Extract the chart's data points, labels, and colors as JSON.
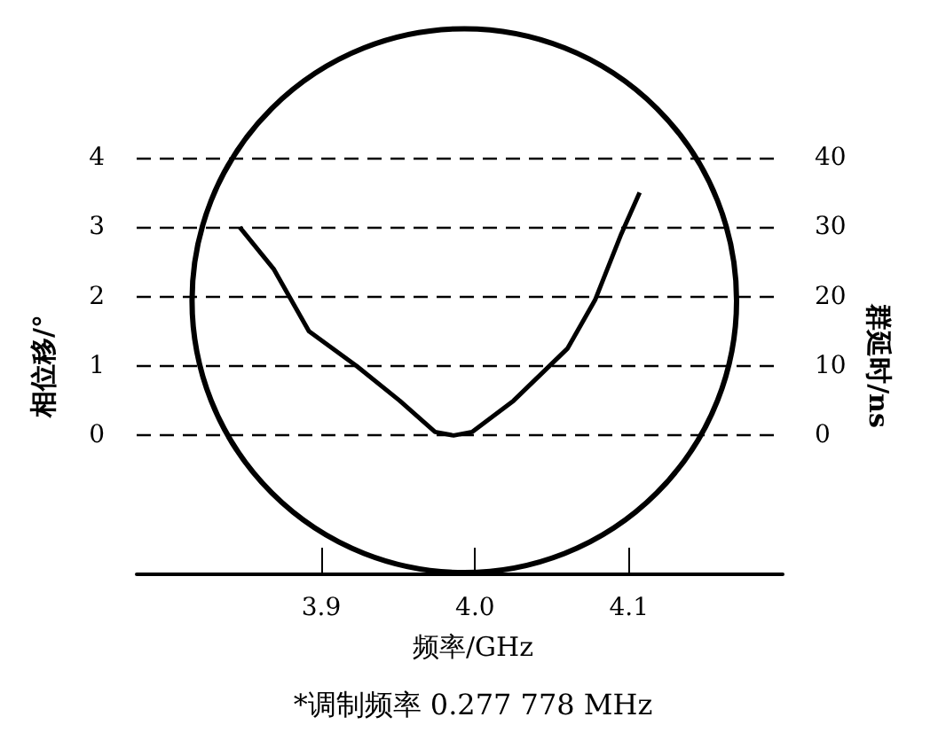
{
  "chart_data": {
    "type": "line",
    "xlabel": "频率/GHz",
    "ylabel": "相位移/°",
    "y2label": "群延时/ns",
    "annotations": [
      "*调制频率 0.277 778 MHz"
    ],
    "series": [
      {
        "color": "#000000",
        "x": [
          3.847,
          3.869,
          3.892,
          3.923,
          3.951,
          3.974,
          3.986,
          3.998,
          4.025,
          4.06,
          4.078,
          4.095,
          4.107
        ],
        "values": [
          3.0,
          2.4,
          1.5,
          1.0,
          0.5,
          0.05,
          0,
          0.05,
          0.5,
          1.25,
          1.95,
          2.9,
          3.5
        ]
      }
    ],
    "xlim": [
      3.78,
      4.2
    ],
    "xticks": [
      3.9,
      {
        "value": 4.0,
        "label": "4.0"
      },
      4.1
    ],
    "ylim": [
      -2,
      4
    ],
    "yticks": [
      0,
      1,
      2,
      3,
      4
    ],
    "y2lim": [
      -20,
      40
    ],
    "y2ticks": [
      0,
      10,
      20,
      30,
      40
    ],
    "grid": "y",
    "marker": "none",
    "line_style": "solid"
  }
}
